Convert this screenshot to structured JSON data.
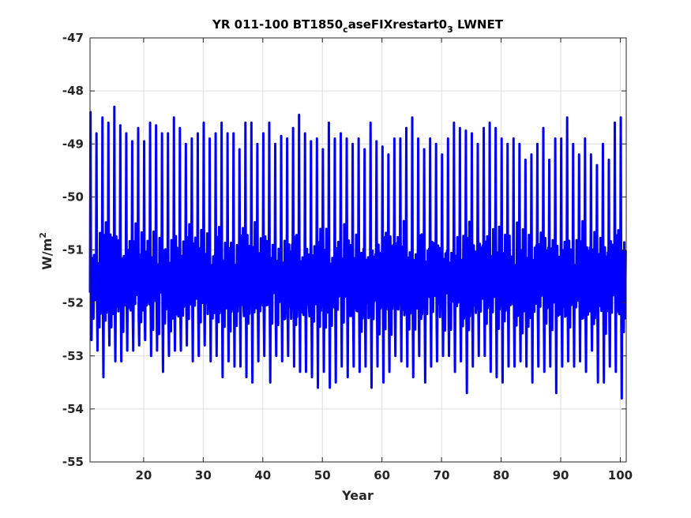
{
  "chart_data": {
    "type": "line",
    "title": {
      "main": "YR 011-100 BT1850",
      "subscript_1": "c",
      "middle": "aseFIXrestart0",
      "subscript_2": "3",
      "end": " LWNET"
    },
    "xlabel": "Year",
    "ylabel": {
      "base": "W/m",
      "superscript": "2"
    },
    "xlim": [
      11,
      101
    ],
    "ylim": [
      -55,
      -47
    ],
    "xticks": [
      20,
      30,
      40,
      50,
      60,
      70,
      80,
      90,
      100
    ],
    "xtick_labels": [
      "20",
      "30",
      "40",
      "50",
      "60",
      "70",
      "80",
      "90",
      "100"
    ],
    "yticks": [
      -55,
      -54,
      -53,
      -52,
      -51,
      -50,
      -49,
      -48,
      -47
    ],
    "ytick_labels": [
      "-55",
      "-54",
      "-53",
      "-52",
      "-51",
      "-50",
      "-49",
      "-48",
      "-47"
    ],
    "grid": true,
    "series": [
      {
        "color": "#0000ff",
        "sampling": "monthly",
        "annual_max": [
          -48.4,
          -48.8,
          -48.5,
          -48.6,
          -48.3,
          -48.65,
          -48.8,
          -48.95,
          -48.7,
          -48.95,
          -48.6,
          -48.65,
          -48.8,
          -48.8,
          -48.5,
          -48.7,
          -49.0,
          -48.9,
          -48.8,
          -48.6,
          -48.9,
          -48.8,
          -48.6,
          -48.8,
          -48.8,
          -49.1,
          -48.6,
          -48.6,
          -49.0,
          -48.8,
          -48.6,
          -49.0,
          -48.85,
          -48.9,
          -48.7,
          -48.45,
          -48.8,
          -48.95,
          -48.9,
          -49.1,
          -48.6,
          -48.9,
          -48.8,
          -48.9,
          -49.0,
          -48.9,
          -49.1,
          -48.6,
          -48.95,
          -49.05,
          -49.2,
          -48.9,
          -48.9,
          -48.7,
          -48.5,
          -48.9,
          -49.1,
          -48.9,
          -49.0,
          -49.2,
          -48.9,
          -48.6,
          -48.7,
          -48.75,
          -48.8,
          -49.0,
          -48.7,
          -48.6,
          -48.7,
          -48.9,
          -49.0,
          -48.9,
          -49.0,
          -49.3,
          -49.2,
          -49.0,
          -48.7,
          -49.3,
          -48.9,
          -48.9,
          -48.5,
          -49.0,
          -49.2,
          -48.9,
          -49.2,
          -49.4,
          -49.0,
          -49.3,
          -48.6,
          -48.5
        ],
        "annual_min": [
          -52.7,
          -52.9,
          -53.4,
          -52.8,
          -53.1,
          -53.1,
          -52.9,
          -52.9,
          -52.8,
          -52.7,
          -53.0,
          -52.9,
          -53.3,
          -53.0,
          -52.9,
          -52.9,
          -52.8,
          -53.1,
          -53.0,
          -52.8,
          -53.1,
          -53.0,
          -53.4,
          -53.1,
          -53.2,
          -53.2,
          -53.4,
          -53.5,
          -53.1,
          -53.0,
          -53.5,
          -53.0,
          -53.1,
          -53.0,
          -53.2,
          -53.3,
          -53.3,
          -53.4,
          -53.6,
          -53.3,
          -53.6,
          -53.5,
          -53.2,
          -53.4,
          -53.2,
          -53.3,
          -53.2,
          -53.6,
          -53.2,
          -53.5,
          -53.3,
          -53.0,
          -53.1,
          -53.2,
          -53.4,
          -53.0,
          -53.5,
          -53.2,
          -53.1,
          -53.0,
          -53.0,
          -53.3,
          -53.1,
          -53.7,
          -53.2,
          -53.0,
          -53.0,
          -53.3,
          -53.4,
          -53.5,
          -53.2,
          -53.2,
          -53.1,
          -53.2,
          -53.5,
          -53.2,
          -53.3,
          -53.2,
          -53.7,
          -53.2,
          -53.1,
          -53.2,
          -53.1,
          -53.3,
          -52.9,
          -53.5,
          -53.5,
          -53.2,
          -53.3,
          -53.8
        ]
      }
    ]
  }
}
